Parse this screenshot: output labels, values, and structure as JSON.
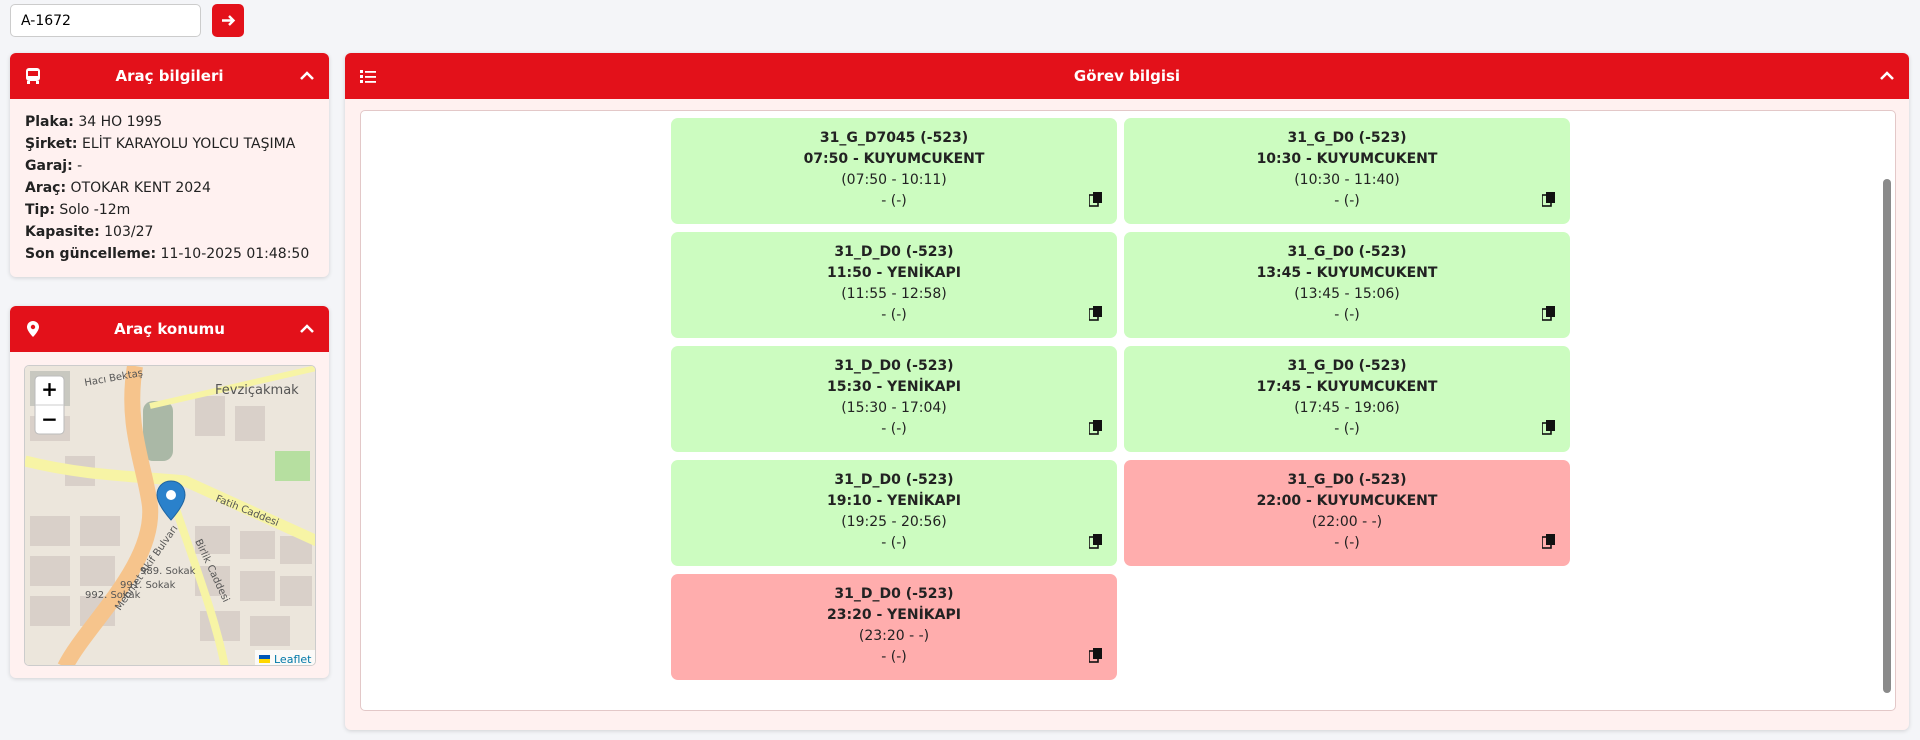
{
  "search": {
    "value": "A-1672"
  },
  "vehicle_panel": {
    "title": "Araç bilgileri",
    "fields": [
      {
        "label": "Plaka:",
        "value": "34 HO 1995"
      },
      {
        "label": "Şirket:",
        "value": "ELİT KARAYOLU YOLCU TAŞIMA"
      },
      {
        "label": "Garaj:",
        "value": "-"
      },
      {
        "label": "Araç:",
        "value": "OTOKAR KENT 2024"
      },
      {
        "label": "Tip:",
        "value": "Solo -12m"
      },
      {
        "label": "Kapasite:",
        "value": "103/27"
      },
      {
        "label": "Son güncelleme:",
        "value": "11-10-2025 01:48:50"
      }
    ]
  },
  "location_panel": {
    "title": "Araç konumu",
    "zoom_in": "+",
    "zoom_out": "−",
    "attribution": "Leaflet",
    "streets": [
      "Fatih Caddesi",
      "Mehmet Akif Bulvarı",
      "Birlik Caddesi",
      "Fevziçakmak",
      "Hacı Bektaş",
      "989. Sokak",
      "991. Sokak",
      "992. Sokak"
    ]
  },
  "task_panel": {
    "title": "Görev bilgisi",
    "cards": [
      {
        "line1": "31_G_D7045 (-523)",
        "line2": "07:50 - KUYUMCUKENT",
        "line3": "(07:50 - 10:11)",
        "line4": "- (-)",
        "color": "#ccfcc0"
      },
      {
        "line1": "31_G_D0 (-523)",
        "line2": "10:30 - KUYUMCUKENT",
        "line3": "(10:30 - 11:40)",
        "line4": "- (-)",
        "color": "#ccfcc0"
      },
      {
        "line1": "31_D_D0 (-523)",
        "line2": "11:50 - YENİKAPI",
        "line3": "(11:55 - 12:58)",
        "line4": "- (-)",
        "color": "#ccfcc0"
      },
      {
        "line1": "31_G_D0 (-523)",
        "line2": "13:45 - KUYUMCUKENT",
        "line3": "(13:45 - 15:06)",
        "line4": "- (-)",
        "color": "#ccfcc0"
      },
      {
        "line1": "31_D_D0 (-523)",
        "line2": "15:30 - YENİKAPI",
        "line3": "(15:30 - 17:04)",
        "line4": "- (-)",
        "color": "#ccfcc0"
      },
      {
        "line1": "31_G_D0 (-523)",
        "line2": "17:45 - KUYUMCUKENT",
        "line3": "(17:45 - 19:06)",
        "line4": "- (-)",
        "color": "#ccfcc0"
      },
      {
        "line1": "31_D_D0 (-523)",
        "line2": "19:10 - YENİKAPI",
        "line3": "(19:25 - 20:56)",
        "line4": "- (-)",
        "color": "#ccfcc0"
      },
      {
        "line1": "31_G_D0 (-523)",
        "line2": "22:00 - KUYUMCUKENT",
        "line3": "(22:00 - -)",
        "line4": "- (-)",
        "color": "#ffadad"
      },
      {
        "line1": "31_D_D0 (-523)",
        "line2": "23:20 - YENİKAPI",
        "line3": "(23:20 - -)",
        "line4": "- (-)",
        "color": "#ffadad"
      }
    ]
  }
}
